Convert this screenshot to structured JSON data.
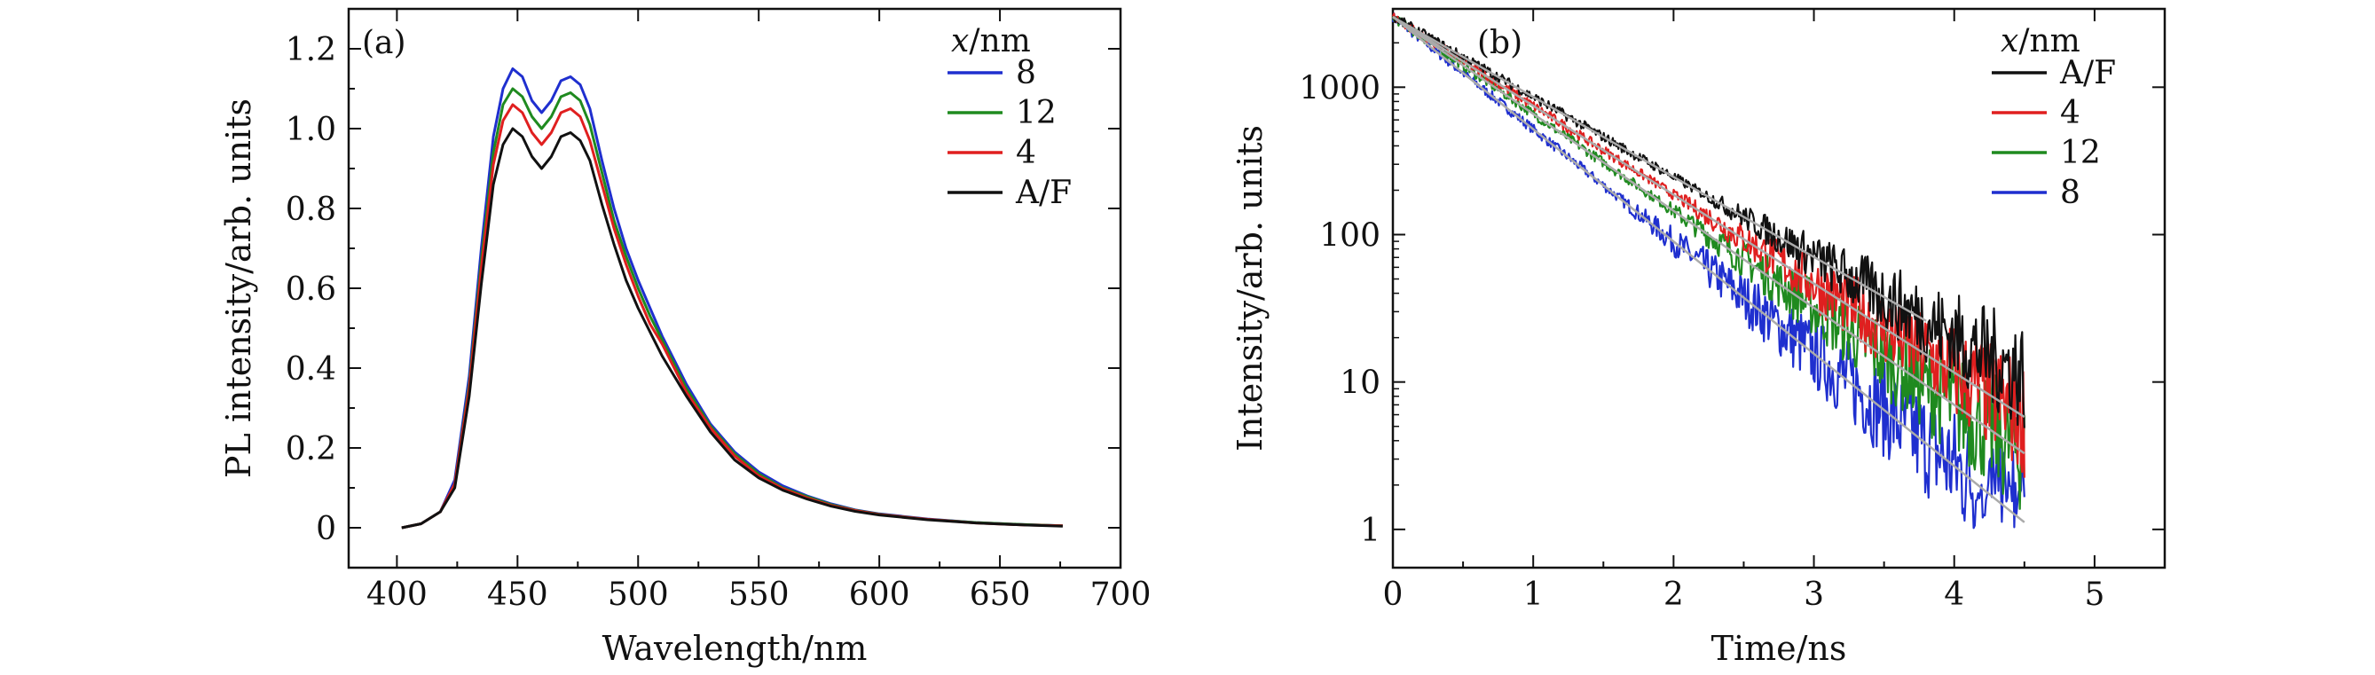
{
  "chart_data": [
    {
      "type": "line",
      "panel_label": "(a)",
      "xlabel": "Wavelength/nm",
      "ylabel": "PL intensity/arb. units",
      "xlim": [
        380,
        700
      ],
      "ylim": [
        -0.1,
        1.3
      ],
      "x_ticks": [
        400,
        450,
        500,
        550,
        600,
        650,
        700
      ],
      "y_ticks": [
        0,
        0.2,
        0.4,
        0.6,
        0.8,
        1.0,
        1.2
      ],
      "y_tick_labels": [
        "0",
        "0.2",
        "0.4",
        "0.6",
        "0.8",
        "1.0",
        "1.2"
      ],
      "legend": {
        "title_var": "x",
        "title_unit": "/nm",
        "position": "top-right"
      },
      "x": [
        402,
        410,
        418,
        424,
        430,
        435,
        440,
        444,
        448,
        452,
        456,
        460,
        464,
        468,
        472,
        476,
        480,
        485,
        490,
        495,
        500,
        505,
        510,
        520,
        530,
        540,
        550,
        560,
        570,
        580,
        590,
        600,
        620,
        640,
        660,
        676
      ],
      "series": [
        {
          "name": "8",
          "color": "#1f2fcf",
          "values": [
            0.0,
            0.01,
            0.04,
            0.12,
            0.38,
            0.7,
            0.98,
            1.1,
            1.15,
            1.13,
            1.07,
            1.04,
            1.07,
            1.12,
            1.13,
            1.11,
            1.05,
            0.92,
            0.8,
            0.7,
            0.62,
            0.55,
            0.48,
            0.36,
            0.26,
            0.19,
            0.14,
            0.105,
            0.08,
            0.06,
            0.045,
            0.035,
            0.022,
            0.013,
            0.008,
            0.005
          ]
        },
        {
          "name": "12",
          "color": "#1f8a1f",
          "values": [
            0.0,
            0.01,
            0.04,
            0.11,
            0.36,
            0.67,
            0.94,
            1.06,
            1.1,
            1.08,
            1.03,
            1.0,
            1.03,
            1.08,
            1.09,
            1.07,
            1.01,
            0.89,
            0.77,
            0.68,
            0.6,
            0.53,
            0.47,
            0.35,
            0.255,
            0.185,
            0.135,
            0.1,
            0.078,
            0.058,
            0.044,
            0.034,
            0.021,
            0.013,
            0.008,
            0.005
          ]
        },
        {
          "name": "4",
          "color": "#e01f1f",
          "values": [
            0.0,
            0.01,
            0.04,
            0.11,
            0.35,
            0.65,
            0.91,
            1.02,
            1.06,
            1.04,
            0.99,
            0.96,
            0.99,
            1.04,
            1.05,
            1.03,
            0.97,
            0.86,
            0.75,
            0.66,
            0.58,
            0.51,
            0.46,
            0.34,
            0.25,
            0.18,
            0.13,
            0.098,
            0.075,
            0.056,
            0.043,
            0.033,
            0.021,
            0.012,
            0.007,
            0.005
          ]
        },
        {
          "name": "A/F",
          "color": "#111111",
          "values": [
            0.0,
            0.01,
            0.04,
            0.1,
            0.33,
            0.61,
            0.86,
            0.96,
            1.0,
            0.98,
            0.93,
            0.9,
            0.93,
            0.98,
            0.99,
            0.97,
            0.92,
            0.81,
            0.71,
            0.62,
            0.55,
            0.49,
            0.43,
            0.33,
            0.24,
            0.17,
            0.125,
            0.094,
            0.072,
            0.054,
            0.041,
            0.032,
            0.02,
            0.012,
            0.007,
            0.004
          ]
        }
      ]
    },
    {
      "type": "line",
      "panel_label": "(b)",
      "xlabel": "Time/ns",
      "ylabel": "Intensity/arb. units",
      "xlim": [
        0,
        5.5
      ],
      "ylim": [
        0.55,
        3400
      ],
      "yscale": "log",
      "x_ticks": [
        0,
        1,
        2,
        3,
        4,
        5
      ],
      "y_ticks": [
        1,
        10,
        100,
        1000
      ],
      "y_tick_labels": [
        "1",
        "10",
        "100",
        "1000"
      ],
      "legend": {
        "title_var": "x",
        "title_unit": "/nm",
        "position": "top-right"
      },
      "series": [
        {
          "name": "A/F",
          "color": "#111111",
          "initial": 3000,
          "lifetime_ns": 0.8,
          "fit_end": 3.8,
          "noise_start": 2.2
        },
        {
          "name": "4",
          "color": "#e01f1f",
          "initial": 3000,
          "lifetime_ns": 0.72,
          "fit_end": 4.5,
          "noise_start": 2.0
        },
        {
          "name": "12",
          "color": "#1f8a1f",
          "initial": 3000,
          "lifetime_ns": 0.66,
          "fit_end": 4.5,
          "noise_start": 1.9
        },
        {
          "name": "8",
          "color": "#1f2fcf",
          "initial": 3000,
          "lifetime_ns": 0.57,
          "fit_end": 4.5,
          "noise_start": 1.6
        }
      ],
      "fit_line_color": "#aaaaaa",
      "data_end_ns": 4.5
    }
  ]
}
